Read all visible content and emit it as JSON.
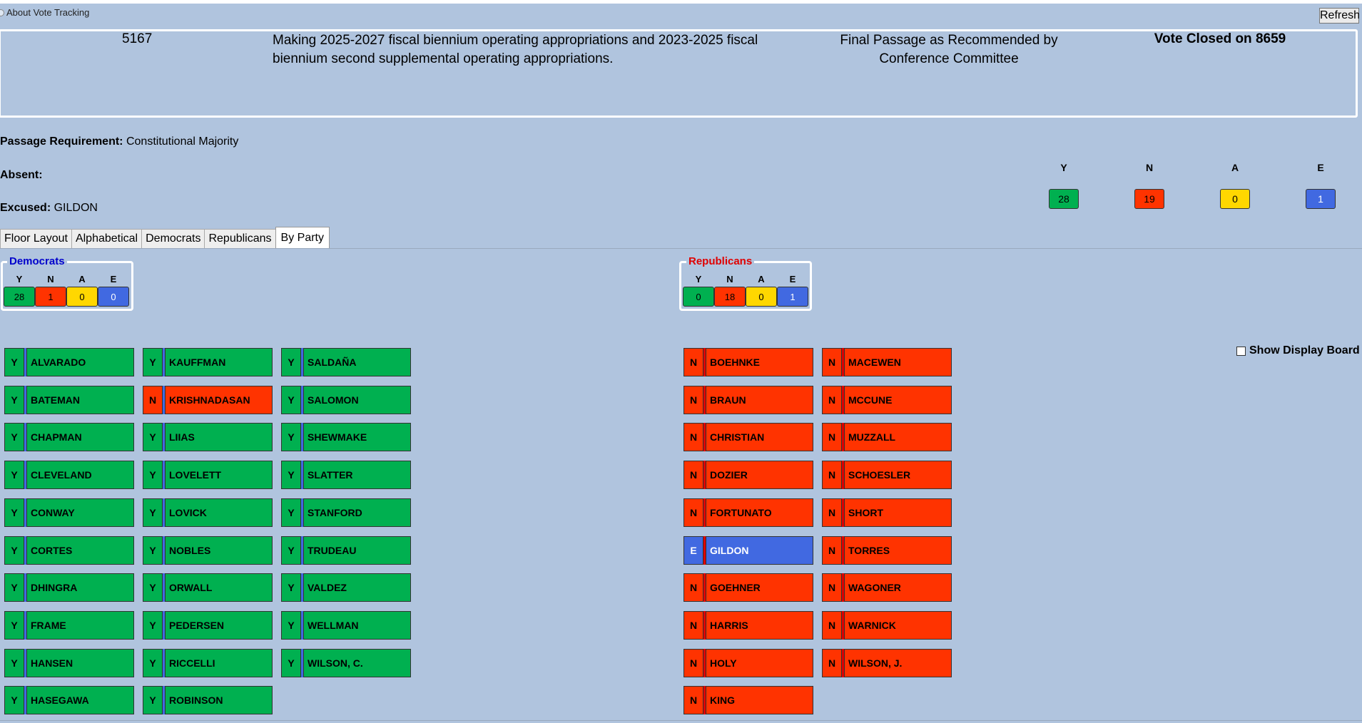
{
  "header": {
    "about_label": "About Vote Tracking",
    "refresh_label": "Refresh"
  },
  "bill": {
    "number": "5167",
    "description": "Making 2025-2027 fiscal biennium operating appropriations and 2023-2025 fiscal biennium second supplemental operating appropriations.",
    "action": "Final Passage as Recommended by Conference Committee",
    "status": "Vote Closed on 8659"
  },
  "info": {
    "passage_label": "Passage Requirement:",
    "passage_value": "Constitutional Majority",
    "absent_label": "Absent:",
    "absent_value": "",
    "excused_label": "Excused:",
    "excused_value": "GILDON"
  },
  "totals": {
    "labels": [
      "Y",
      "N",
      "A",
      "E"
    ],
    "values": [
      "28",
      "19",
      "0",
      "1"
    ]
  },
  "colors": {
    "yea": "#00b050",
    "nay": "#ff3300",
    "absent": "#ffd700",
    "excused": "#4169e1",
    "background": "#b0c4de"
  },
  "tabs": [
    "Floor Layout",
    "Alphabetical",
    "Democrats",
    "Republicans",
    "By Party"
  ],
  "active_tab": "By Party",
  "parties": {
    "democrats": {
      "title": "Democrats",
      "title_color": "#0000cc",
      "labels": [
        "Y",
        "N",
        "A",
        "E"
      ],
      "values": [
        "28",
        "1",
        "0",
        "0"
      ]
    },
    "republicans": {
      "title": "Republicans",
      "title_color": "#e00000",
      "labels": [
        "Y",
        "N",
        "A",
        "E"
      ],
      "values": [
        "0",
        "18",
        "0",
        "1"
      ]
    }
  },
  "show_board_label": "Show Display Board",
  "members": {
    "dem_col1": [
      {
        "vote": "Y",
        "name": "ALVARADO"
      },
      {
        "vote": "Y",
        "name": "BATEMAN"
      },
      {
        "vote": "Y",
        "name": "CHAPMAN"
      },
      {
        "vote": "Y",
        "name": "CLEVELAND"
      },
      {
        "vote": "Y",
        "name": "CONWAY"
      },
      {
        "vote": "Y",
        "name": "CORTES"
      },
      {
        "vote": "Y",
        "name": "DHINGRA"
      },
      {
        "vote": "Y",
        "name": "FRAME"
      },
      {
        "vote": "Y",
        "name": "HANSEN"
      },
      {
        "vote": "Y",
        "name": "HASEGAWA"
      }
    ],
    "dem_col2": [
      {
        "vote": "Y",
        "name": "KAUFFMAN"
      },
      {
        "vote": "N",
        "name": "KRISHNADASAN"
      },
      {
        "vote": "Y",
        "name": "LIIAS"
      },
      {
        "vote": "Y",
        "name": "LOVELETT"
      },
      {
        "vote": "Y",
        "name": "LOVICK"
      },
      {
        "vote": "Y",
        "name": "NOBLES"
      },
      {
        "vote": "Y",
        "name": "ORWALL"
      },
      {
        "vote": "Y",
        "name": "PEDERSEN"
      },
      {
        "vote": "Y",
        "name": "RICCELLI"
      },
      {
        "vote": "Y",
        "name": "ROBINSON"
      }
    ],
    "dem_col3": [
      {
        "vote": "Y",
        "name": "SALDAÑA"
      },
      {
        "vote": "Y",
        "name": "SALOMON"
      },
      {
        "vote": "Y",
        "name": "SHEWMAKE"
      },
      {
        "vote": "Y",
        "name": "SLATTER"
      },
      {
        "vote": "Y",
        "name": "STANFORD"
      },
      {
        "vote": "Y",
        "name": "TRUDEAU"
      },
      {
        "vote": "Y",
        "name": "VALDEZ"
      },
      {
        "vote": "Y",
        "name": "WELLMAN"
      },
      {
        "vote": "Y",
        "name": "WILSON, C."
      }
    ],
    "rep_col1": [
      {
        "vote": "N",
        "name": "BOEHNKE"
      },
      {
        "vote": "N",
        "name": "BRAUN"
      },
      {
        "vote": "N",
        "name": "CHRISTIAN"
      },
      {
        "vote": "N",
        "name": "DOZIER"
      },
      {
        "vote": "N",
        "name": "FORTUNATO"
      },
      {
        "vote": "E",
        "name": "GILDON"
      },
      {
        "vote": "N",
        "name": "GOEHNER"
      },
      {
        "vote": "N",
        "name": "HARRIS"
      },
      {
        "vote": "N",
        "name": "HOLY"
      },
      {
        "vote": "N",
        "name": "KING"
      }
    ],
    "rep_col2": [
      {
        "vote": "N",
        "name": "MACEWEN"
      },
      {
        "vote": "N",
        "name": "MCCUNE"
      },
      {
        "vote": "N",
        "name": "MUZZALL"
      },
      {
        "vote": "N",
        "name": "SCHOESLER"
      },
      {
        "vote": "N",
        "name": "SHORT"
      },
      {
        "vote": "N",
        "name": "TORRES"
      },
      {
        "vote": "N",
        "name": "WAGONER"
      },
      {
        "vote": "N",
        "name": "WARNICK"
      },
      {
        "vote": "N",
        "name": "WILSON, J."
      }
    ]
  }
}
